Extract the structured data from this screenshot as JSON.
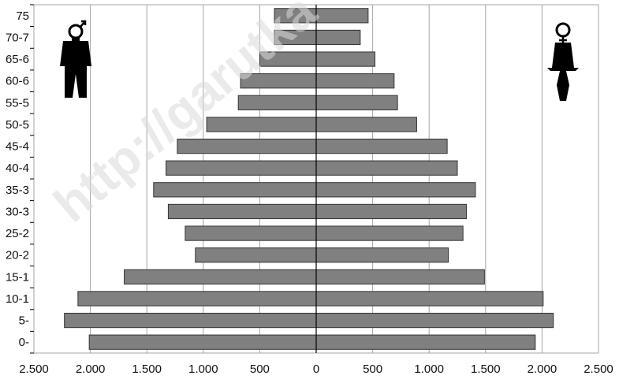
{
  "chart_data": {
    "type": "bar",
    "orientation": "horizontal",
    "title": "",
    "xlabel": "",
    "ylabel": "",
    "categories": [
      "0-",
      "5-",
      "10-1",
      "15-1",
      "20-2",
      "25-2",
      "30-3",
      "35-3",
      "40-4",
      "45-4",
      "50-5",
      "55-5",
      "60-6",
      "65-6",
      "70-7",
      "75"
    ],
    "x_tick_labels": [
      "2.500",
      "2.000",
      "1.500",
      "1.000",
      "500",
      "0",
      "500",
      "1.000",
      "1.500",
      "2.000",
      "2.500"
    ],
    "xlim": [
      -2500,
      2500
    ],
    "grid": true,
    "series": [
      {
        "values": [
          2010,
          2230,
          2110,
          1700,
          1070,
          1160,
          1310,
          1440,
          1330,
          1230,
          970,
          690,
          670,
          500,
          370,
          370
        ]
      },
      {
        "values": [
          1940,
          2100,
          2010,
          1490,
          1170,
          1300,
          1330,
          1410,
          1250,
          1160,
          890,
          720,
          690,
          520,
          390,
          460
        ]
      }
    ],
    "colors": {
      "bar": "#808080",
      "bar_border": "#333333",
      "grid": "#a6a6a6"
    },
    "watermark": "http://garutka",
    "icons": [
      "male-figure-icon",
      "female-figure-icon"
    ]
  }
}
